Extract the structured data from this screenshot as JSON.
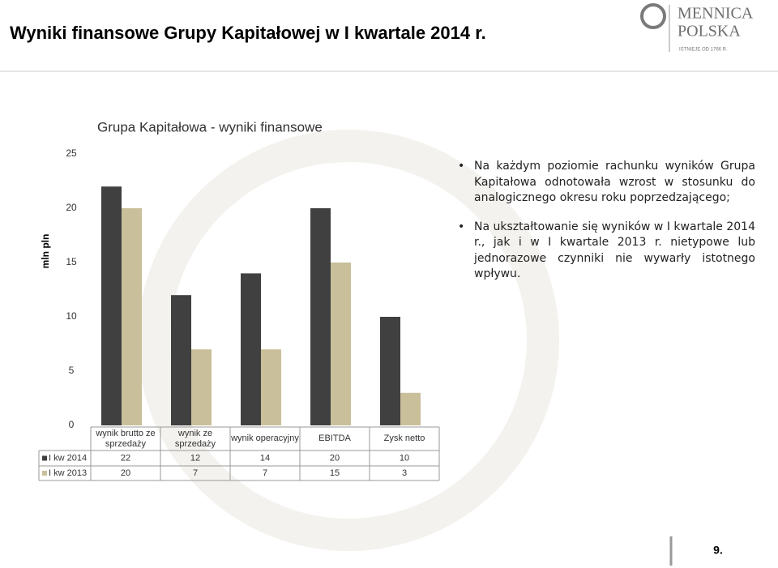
{
  "header": {
    "title": "Wyniki finansowe Grupy Kapitałowej w I kwartale 2014 r.",
    "logo": {
      "line1": "MENNICA",
      "line2": "POLSKA",
      "tagline": "ISTNIEJE OD 1766 R."
    }
  },
  "chart_data": {
    "type": "bar",
    "title": "Grupa Kapitałowa - wyniki finansowe",
    "y_label": "mln pln",
    "categories": [
      "wynik brutto ze sprzedaży",
      "wynik ze sprzedaży",
      "wynik operacyjny",
      "EBITDA",
      "Zysk netto"
    ],
    "series": [
      {
        "name": "I kw 2014",
        "color": "#404040",
        "values": [
          22,
          12,
          14,
          20,
          10
        ]
      },
      {
        "name": "I kw 2013",
        "color": "#c9bf9b",
        "values": [
          20,
          7,
          7,
          15,
          3
        ]
      }
    ],
    "ylim": [
      0,
      25
    ],
    "yticks": [
      0,
      5,
      10,
      15,
      20,
      25
    ],
    "grid": false
  },
  "bullets": [
    "Na każdym poziomie rachunku wyników Grupa Kapitałowa odnotowała wzrost w stosunku do analogicznego okresu roku poprzedzającego;",
    "Na ukształtowanie się wyników w I kwartale 2014 r., jak i w I kwartale 2013 r. nietypowe lub jednorazowe czynniki nie wywarły istotnego wpływu."
  ],
  "page_number": "9."
}
